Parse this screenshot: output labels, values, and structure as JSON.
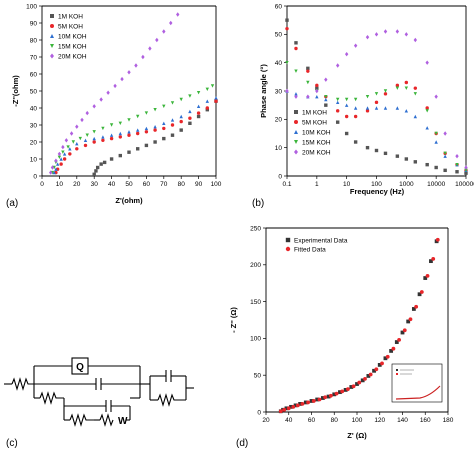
{
  "chart_data": [
    {
      "panel": "(a)",
      "type": "scatter",
      "xlabel": "Z'(ohm)",
      "ylabel": "-Z''(ohm)",
      "xlim": [
        0,
        100
      ],
      "ylim": [
        0,
        100
      ],
      "xticks": [
        "0",
        "10",
        "20",
        "30",
        "40",
        "50",
        "60",
        "70",
        "80",
        "90",
        "100"
      ],
      "yticks": [
        "0",
        "10",
        "20",
        "30",
        "40",
        "50",
        "60",
        "70",
        "80",
        "90",
        "100"
      ],
      "legend_position": "top-left",
      "series": [
        {
          "name": "1M KOH",
          "color": "#555555",
          "marker": "square",
          "x": [
            30,
            31,
            32,
            34,
            36,
            40,
            45,
            50,
            55,
            60,
            65,
            70,
            75,
            80,
            85,
            90,
            95,
            100
          ],
          "y": [
            1,
            3,
            5,
            7,
            8,
            10,
            12,
            14,
            16,
            18,
            20,
            22,
            24,
            27,
            31,
            35,
            39,
            44
          ]
        },
        {
          "name": "5M KOH",
          "color": "#e8262a",
          "marker": "circle",
          "x": [
            8,
            9,
            11,
            13,
            16,
            20,
            25,
            30,
            35,
            40,
            45,
            50,
            55,
            60,
            65,
            70,
            75,
            80,
            85,
            90,
            95,
            100
          ],
          "y": [
            2,
            4,
            7,
            10,
            13,
            16,
            18,
            20,
            21,
            22,
            23,
            24,
            25,
            26,
            27,
            28,
            30,
            32,
            34,
            37,
            40,
            44
          ]
        },
        {
          "name": "10M KOH",
          "color": "#2e6fd1",
          "marker": "triangle-up",
          "x": [
            7,
            8,
            9,
            11,
            13,
            16,
            20,
            25,
            30,
            35,
            40,
            45,
            50,
            55,
            60,
            65,
            70,
            75,
            80,
            85,
            90,
            95,
            100
          ],
          "y": [
            2,
            4,
            7,
            10,
            13,
            16,
            19,
            21,
            22,
            23,
            24,
            25,
            26,
            27,
            28,
            29,
            31,
            33,
            35,
            38,
            41,
            44,
            46
          ]
        },
        {
          "name": "15M KOH",
          "color": "#3bb53b",
          "marker": "triangle-down",
          "x": [
            6,
            7,
            8,
            10,
            12,
            15,
            18,
            22,
            26,
            30,
            35,
            40,
            45,
            50,
            55,
            60,
            65,
            70,
            75,
            80,
            85,
            90,
            95,
            98
          ],
          "y": [
            2,
            5,
            8,
            11,
            14,
            17,
            20,
            22,
            24,
            26,
            28,
            30,
            31,
            33,
            35,
            37,
            39,
            41,
            43,
            45,
            47,
            49,
            51,
            53
          ]
        },
        {
          "name": "20M KOH",
          "color": "#b060e0",
          "marker": "diamond",
          "x": [
            5,
            6,
            8,
            10,
            12,
            14,
            17,
            20,
            23,
            26,
            30,
            34,
            38,
            42,
            46,
            50,
            54,
            58,
            62,
            66,
            70,
            74,
            78
          ],
          "y": [
            2,
            5,
            9,
            13,
            17,
            21,
            25,
            29,
            33,
            37,
            41,
            45,
            49,
            53,
            57,
            61,
            65,
            70,
            75,
            80,
            85,
            90,
            95
          ]
        }
      ]
    },
    {
      "panel": "(b)",
      "type": "scatter",
      "xlabel": "Frequency (Hz)",
      "ylabel": "Phase angle (°)",
      "xscale": "log",
      "xlim": [
        0.1,
        100000
      ],
      "ylim": [
        0,
        60
      ],
      "xticks": [
        "0.1",
        "1",
        "10",
        "100",
        "1000",
        "10000",
        "100000"
      ],
      "yticks": [
        "0",
        "10",
        "20",
        "30",
        "40",
        "50",
        "60"
      ],
      "legend_position": "bottom-left",
      "series": [
        {
          "name": "1M KOH",
          "color": "#555555",
          "marker": "square",
          "x": [
            0.1,
            0.2,
            0.5,
            1,
            2,
            5,
            10,
            20,
            50,
            100,
            200,
            500,
            1000,
            2000,
            5000,
            10000,
            20000,
            50000,
            100000
          ],
          "y": [
            55,
            47,
            38,
            31,
            25,
            19,
            15,
            12,
            10,
            9,
            8,
            7,
            6,
            5,
            4,
            3,
            2,
            1.5,
            1
          ]
        },
        {
          "name": "5M KOH",
          "color": "#e8262a",
          "marker": "circle",
          "x": [
            0.1,
            0.2,
            0.5,
            1,
            2,
            5,
            10,
            20,
            50,
            100,
            200,
            500,
            1000,
            2000,
            5000,
            10000,
            20000,
            50000,
            100000
          ],
          "y": [
            52,
            45,
            37,
            32,
            28,
            23,
            21,
            21,
            23,
            26,
            29,
            32,
            33,
            31,
            24,
            15,
            8,
            4,
            2
          ]
        },
        {
          "name": "10M KOH",
          "color": "#2e6fd1",
          "marker": "triangle-up",
          "x": [
            0.1,
            0.2,
            0.5,
            1,
            2,
            5,
            10,
            20,
            50,
            100,
            200,
            500,
            1000,
            2000,
            5000,
            10000,
            20000,
            50000,
            100000
          ],
          "y": [
            30,
            29,
            28,
            28,
            27,
            26,
            25,
            24,
            24,
            24,
            24,
            24,
            23,
            21,
            17,
            12,
            7,
            4,
            2
          ]
        },
        {
          "name": "15M KOH",
          "color": "#3bb53b",
          "marker": "triangle-down",
          "x": [
            0.1,
            0.2,
            0.5,
            1,
            2,
            5,
            10,
            20,
            50,
            100,
            200,
            500,
            1000,
            2000,
            5000,
            10000,
            20000,
            50000,
            100000
          ],
          "y": [
            40,
            37,
            33,
            30,
            28,
            27,
            27,
            27,
            28,
            29,
            30,
            31,
            31,
            29,
            23,
            15,
            8,
            4,
            2
          ]
        },
        {
          "name": "20M KOH",
          "color": "#b060e0",
          "marker": "diamond",
          "x": [
            0.1,
            0.2,
            0.5,
            1,
            2,
            5,
            10,
            20,
            50,
            100,
            200,
            500,
            1000,
            2000,
            5000,
            10000,
            20000,
            50000,
            100000
          ],
          "y": [
            30,
            28,
            28,
            30,
            34,
            39,
            43,
            46,
            49,
            50,
            51,
            51,
            50,
            48,
            40,
            28,
            15,
            7,
            3
          ]
        }
      ]
    },
    {
      "panel": "(d)",
      "type": "scatter",
      "xlabel": "Z' (Ω)",
      "ylabel": "- Z'' (Ω)",
      "xlim": [
        20,
        180
      ],
      "ylim": [
        0,
        250
      ],
      "xticks": [
        "20",
        "40",
        "60",
        "80",
        "100",
        "120",
        "140",
        "160",
        "180"
      ],
      "yticks": [
        "0",
        "50",
        "100",
        "150",
        "200",
        "250"
      ],
      "legend_position": "top-left",
      "series": [
        {
          "name": "Experimental Data",
          "color": "#333333",
          "marker": "square",
          "x": [
            33,
            35,
            38,
            42,
            46,
            50,
            55,
            60,
            65,
            70,
            75,
            80,
            85,
            90,
            95,
            100,
            105,
            110,
            115,
            120,
            125,
            130,
            135,
            140,
            145,
            150,
            155,
            160,
            165,
            170
          ],
          "y": [
            1,
            3,
            5,
            7,
            9,
            11,
            13,
            15,
            17,
            19,
            21,
            24,
            27,
            30,
            34,
            38,
            43,
            49,
            56,
            64,
            73,
            83,
            95,
            108,
            123,
            140,
            160,
            182,
            205,
            232
          ]
        },
        {
          "name": "Fitted Data",
          "color": "#e8262a",
          "marker": "circle",
          "x": [
            33,
            36,
            40,
            44,
            48,
            52,
            57,
            62,
            67,
            72,
            77,
            82,
            87,
            92,
            97,
            102,
            107,
            112,
            117,
            122,
            127,
            132,
            137,
            142,
            147,
            152,
            157,
            162,
            167,
            171
          ],
          "y": [
            1,
            3,
            5,
            7,
            9,
            11,
            13,
            15,
            17,
            20,
            22,
            25,
            28,
            31,
            35,
            40,
            45,
            51,
            58,
            66,
            75,
            86,
            98,
            111,
            126,
            143,
            163,
            185,
            208,
            234
          ]
        }
      ]
    }
  ],
  "panels": {
    "a": "(a)",
    "b": "(b)",
    "c": "(c)",
    "d": "(d)"
  },
  "circuit": {
    "q_label": "Q",
    "w_label": "W"
  }
}
